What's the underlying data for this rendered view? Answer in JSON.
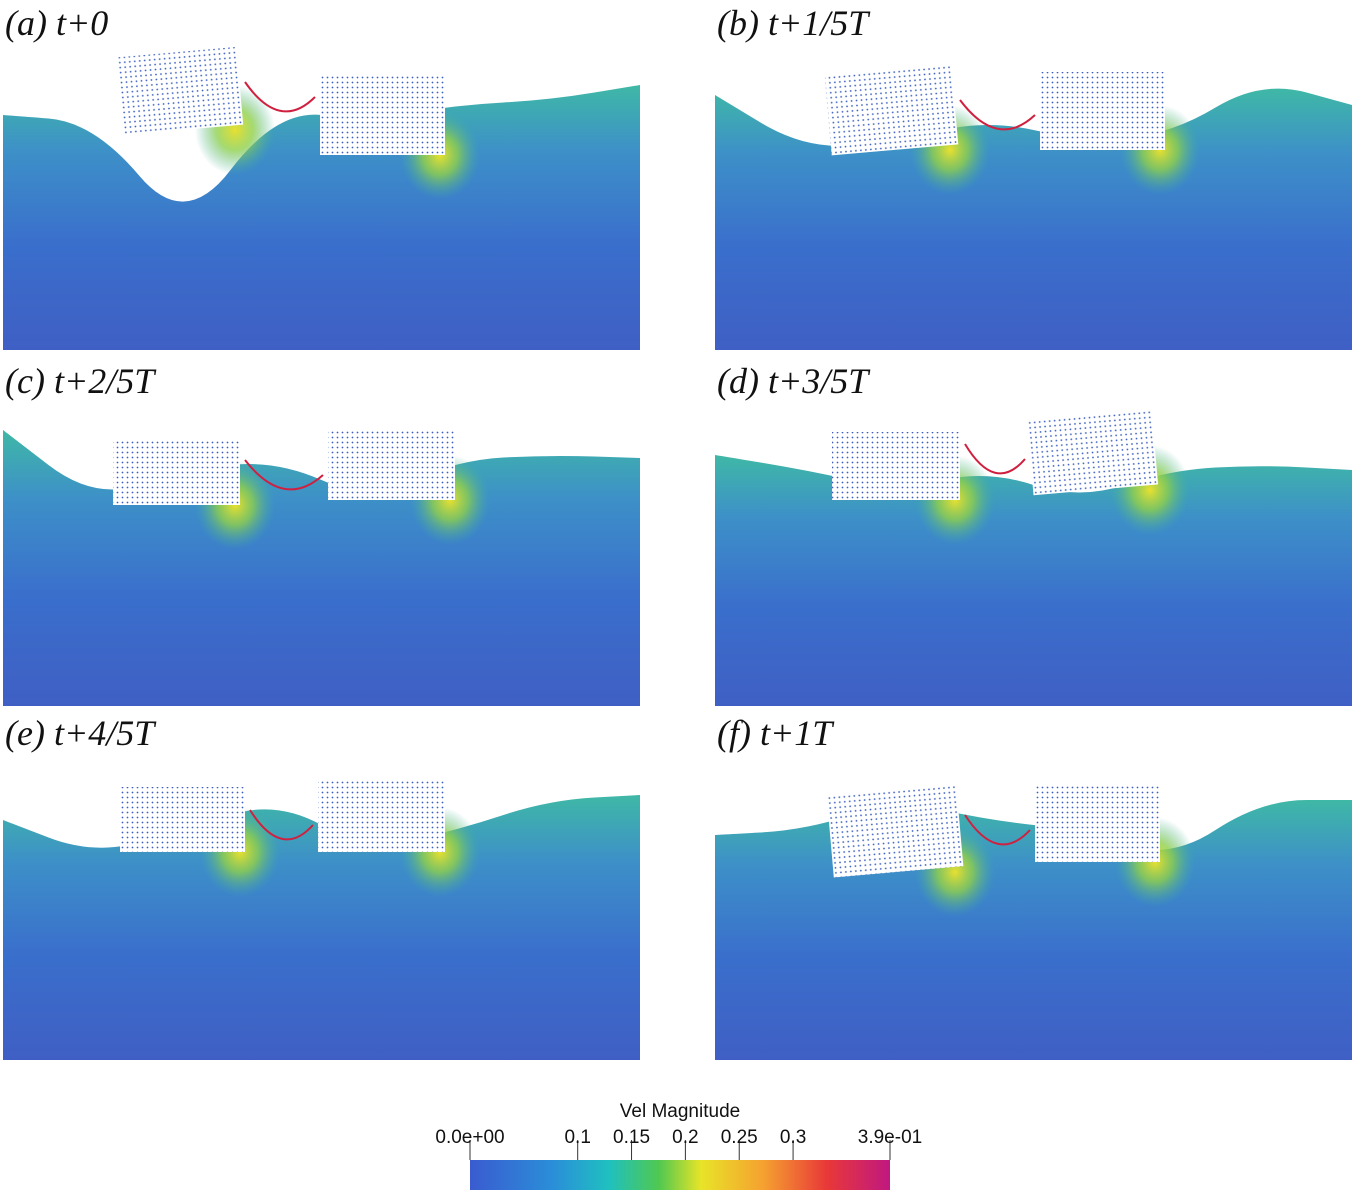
{
  "panels": [
    {
      "label": "(a) t+0"
    },
    {
      "label": "(b) t+1/5T"
    },
    {
      "label": "(c) t+2/5T"
    },
    {
      "label": "(d) t+3/5T"
    },
    {
      "label": "(e) t+4/5T"
    },
    {
      "label": "(f) t+1T"
    }
  ],
  "colorbar": {
    "title": "Vel Magnitude",
    "range": [
      0,
      0.39
    ],
    "ticks": [
      {
        "value": 0,
        "label": "0.0e+00"
      },
      0.1,
      0.15,
      0.2,
      0.25,
      0.3,
      {
        "value": 0.39,
        "label": "3.9e-01"
      }
    ]
  }
}
